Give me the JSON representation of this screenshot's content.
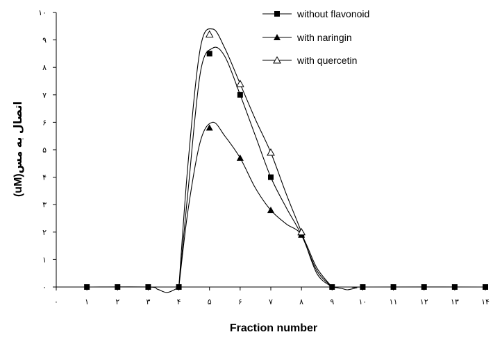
{
  "chart_data": {
    "type": "line",
    "xlabel": "Fraction number",
    "ylabel": "اتصال به مس(uM)",
    "xlim": [
      0,
      14
    ],
    "ylim": [
      0,
      10
    ],
    "x_tick_labels": [
      "۰",
      "۱",
      "۲",
      "۳",
      "۴",
      "۵",
      "۶",
      "۷",
      "۸",
      "۹",
      "۱۰",
      "۱۱",
      "۱۲",
      "۱۳",
      "۱۴"
    ],
    "y_tick_labels": [
      "۰",
      "۱",
      "۲",
      "۳",
      "۴",
      "۵",
      "۶",
      "۷",
      "۸",
      "۹",
      "۱۰"
    ],
    "grid": false,
    "legend_position": "top-right",
    "series": [
      {
        "name": "without flavonoid",
        "marker": "filled-square",
        "points": [
          [
            1,
            0
          ],
          [
            2,
            0
          ],
          [
            3,
            0
          ],
          [
            4,
            0
          ],
          [
            5,
            8.5
          ],
          [
            6,
            7.0
          ],
          [
            7,
            4.0
          ],
          [
            8,
            1.9
          ],
          [
            9,
            0
          ],
          [
            10,
            0
          ],
          [
            11,
            0
          ],
          [
            12,
            0
          ],
          [
            13,
            0
          ],
          [
            14,
            0
          ]
        ]
      },
      {
        "name": "with naringin",
        "marker": "filled-triangle",
        "points": [
          [
            5,
            5.8
          ],
          [
            6,
            4.7
          ],
          [
            7,
            2.8
          ],
          [
            8,
            1.9
          ]
        ]
      },
      {
        "name": "with quercetin",
        "marker": "open-triangle",
        "points": [
          [
            5,
            9.2
          ],
          [
            6,
            7.4
          ],
          [
            7,
            4.9
          ],
          [
            8,
            2.0
          ]
        ]
      }
    ],
    "curves": [
      [
        [
          4,
          0
        ],
        [
          4.3,
          3.5
        ],
        [
          4.7,
          7.8
        ],
        [
          5.1,
          8.7
        ],
        [
          5.5,
          8.4
        ],
        [
          6,
          7.0
        ],
        [
          6.5,
          5.5
        ],
        [
          7,
          4.0
        ],
        [
          7.5,
          2.9
        ],
        [
          8,
          1.9
        ],
        [
          8.5,
          0.6
        ],
        [
          9,
          0
        ]
      ],
      [
        [
          4,
          0
        ],
        [
          4.3,
          2.8
        ],
        [
          4.7,
          5.3
        ],
        [
          5.1,
          6.0
        ],
        [
          5.5,
          5.5
        ],
        [
          6,
          4.7
        ],
        [
          6.5,
          3.6
        ],
        [
          7,
          2.8
        ],
        [
          7.5,
          2.3
        ],
        [
          8,
          1.9
        ],
        [
          8.5,
          0.7
        ],
        [
          9,
          0
        ]
      ],
      [
        [
          4,
          0
        ],
        [
          4.3,
          4.5
        ],
        [
          4.7,
          8.7
        ],
        [
          5.1,
          9.4
        ],
        [
          5.5,
          8.7
        ],
        [
          6,
          7.4
        ],
        [
          6.5,
          6.1
        ],
        [
          7,
          4.9
        ],
        [
          7.5,
          3.4
        ],
        [
          8,
          2.0
        ],
        [
          8.5,
          0.5
        ],
        [
          9,
          0
        ]
      ],
      [
        [
          1,
          0
        ],
        [
          3,
          0
        ],
        [
          3.3,
          -0.08
        ],
        [
          3.6,
          -0.2
        ],
        [
          3.85,
          -0.1
        ],
        [
          4,
          0
        ]
      ],
      [
        [
          9,
          0
        ],
        [
          9.3,
          -0.05
        ],
        [
          9.5,
          -0.1
        ],
        [
          9.8,
          -0.03
        ],
        [
          10,
          0
        ],
        [
          14,
          0
        ]
      ]
    ]
  }
}
